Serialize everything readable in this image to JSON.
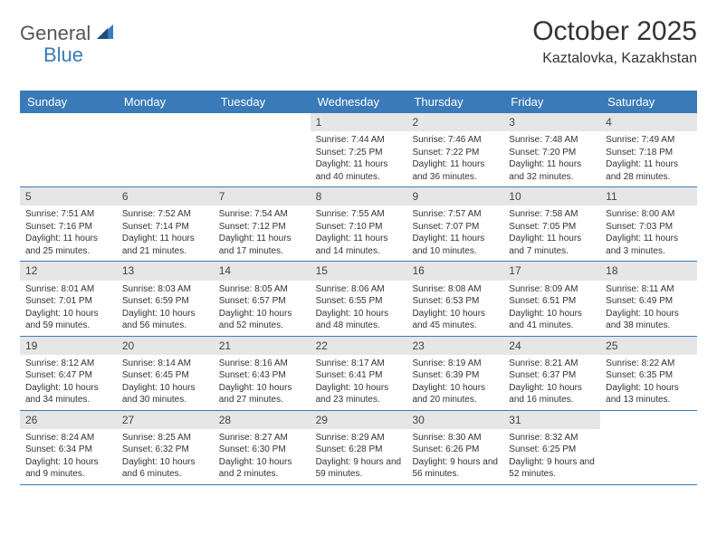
{
  "logo": {
    "general": "General",
    "blue": "Blue"
  },
  "title": "October 2025",
  "location": "Kaztalovka, Kazakhstan",
  "colors": {
    "header_bg": "#3a7ab8",
    "daynum_bg": "#e6e6e6",
    "text": "#333333",
    "row_border": "#3a7ab8"
  },
  "dayNames": [
    "Sunday",
    "Monday",
    "Tuesday",
    "Wednesday",
    "Thursday",
    "Friday",
    "Saturday"
  ],
  "weeks": [
    [
      {
        "n": "",
        "sr": "",
        "ss": "",
        "dl": ""
      },
      {
        "n": "",
        "sr": "",
        "ss": "",
        "dl": ""
      },
      {
        "n": "",
        "sr": "",
        "ss": "",
        "dl": ""
      },
      {
        "n": "1",
        "sr": "Sunrise: 7:44 AM",
        "ss": "Sunset: 7:25 PM",
        "dl": "Daylight: 11 hours and 40 minutes."
      },
      {
        "n": "2",
        "sr": "Sunrise: 7:46 AM",
        "ss": "Sunset: 7:22 PM",
        "dl": "Daylight: 11 hours and 36 minutes."
      },
      {
        "n": "3",
        "sr": "Sunrise: 7:48 AM",
        "ss": "Sunset: 7:20 PM",
        "dl": "Daylight: 11 hours and 32 minutes."
      },
      {
        "n": "4",
        "sr": "Sunrise: 7:49 AM",
        "ss": "Sunset: 7:18 PM",
        "dl": "Daylight: 11 hours and 28 minutes."
      }
    ],
    [
      {
        "n": "5",
        "sr": "Sunrise: 7:51 AM",
        "ss": "Sunset: 7:16 PM",
        "dl": "Daylight: 11 hours and 25 minutes."
      },
      {
        "n": "6",
        "sr": "Sunrise: 7:52 AM",
        "ss": "Sunset: 7:14 PM",
        "dl": "Daylight: 11 hours and 21 minutes."
      },
      {
        "n": "7",
        "sr": "Sunrise: 7:54 AM",
        "ss": "Sunset: 7:12 PM",
        "dl": "Daylight: 11 hours and 17 minutes."
      },
      {
        "n": "8",
        "sr": "Sunrise: 7:55 AM",
        "ss": "Sunset: 7:10 PM",
        "dl": "Daylight: 11 hours and 14 minutes."
      },
      {
        "n": "9",
        "sr": "Sunrise: 7:57 AM",
        "ss": "Sunset: 7:07 PM",
        "dl": "Daylight: 11 hours and 10 minutes."
      },
      {
        "n": "10",
        "sr": "Sunrise: 7:58 AM",
        "ss": "Sunset: 7:05 PM",
        "dl": "Daylight: 11 hours and 7 minutes."
      },
      {
        "n": "11",
        "sr": "Sunrise: 8:00 AM",
        "ss": "Sunset: 7:03 PM",
        "dl": "Daylight: 11 hours and 3 minutes."
      }
    ],
    [
      {
        "n": "12",
        "sr": "Sunrise: 8:01 AM",
        "ss": "Sunset: 7:01 PM",
        "dl": "Daylight: 10 hours and 59 minutes."
      },
      {
        "n": "13",
        "sr": "Sunrise: 8:03 AM",
        "ss": "Sunset: 6:59 PM",
        "dl": "Daylight: 10 hours and 56 minutes."
      },
      {
        "n": "14",
        "sr": "Sunrise: 8:05 AM",
        "ss": "Sunset: 6:57 PM",
        "dl": "Daylight: 10 hours and 52 minutes."
      },
      {
        "n": "15",
        "sr": "Sunrise: 8:06 AM",
        "ss": "Sunset: 6:55 PM",
        "dl": "Daylight: 10 hours and 48 minutes."
      },
      {
        "n": "16",
        "sr": "Sunrise: 8:08 AM",
        "ss": "Sunset: 6:53 PM",
        "dl": "Daylight: 10 hours and 45 minutes."
      },
      {
        "n": "17",
        "sr": "Sunrise: 8:09 AM",
        "ss": "Sunset: 6:51 PM",
        "dl": "Daylight: 10 hours and 41 minutes."
      },
      {
        "n": "18",
        "sr": "Sunrise: 8:11 AM",
        "ss": "Sunset: 6:49 PM",
        "dl": "Daylight: 10 hours and 38 minutes."
      }
    ],
    [
      {
        "n": "19",
        "sr": "Sunrise: 8:12 AM",
        "ss": "Sunset: 6:47 PM",
        "dl": "Daylight: 10 hours and 34 minutes."
      },
      {
        "n": "20",
        "sr": "Sunrise: 8:14 AM",
        "ss": "Sunset: 6:45 PM",
        "dl": "Daylight: 10 hours and 30 minutes."
      },
      {
        "n": "21",
        "sr": "Sunrise: 8:16 AM",
        "ss": "Sunset: 6:43 PM",
        "dl": "Daylight: 10 hours and 27 minutes."
      },
      {
        "n": "22",
        "sr": "Sunrise: 8:17 AM",
        "ss": "Sunset: 6:41 PM",
        "dl": "Daylight: 10 hours and 23 minutes."
      },
      {
        "n": "23",
        "sr": "Sunrise: 8:19 AM",
        "ss": "Sunset: 6:39 PM",
        "dl": "Daylight: 10 hours and 20 minutes."
      },
      {
        "n": "24",
        "sr": "Sunrise: 8:21 AM",
        "ss": "Sunset: 6:37 PM",
        "dl": "Daylight: 10 hours and 16 minutes."
      },
      {
        "n": "25",
        "sr": "Sunrise: 8:22 AM",
        "ss": "Sunset: 6:35 PM",
        "dl": "Daylight: 10 hours and 13 minutes."
      }
    ],
    [
      {
        "n": "26",
        "sr": "Sunrise: 8:24 AM",
        "ss": "Sunset: 6:34 PM",
        "dl": "Daylight: 10 hours and 9 minutes."
      },
      {
        "n": "27",
        "sr": "Sunrise: 8:25 AM",
        "ss": "Sunset: 6:32 PM",
        "dl": "Daylight: 10 hours and 6 minutes."
      },
      {
        "n": "28",
        "sr": "Sunrise: 8:27 AM",
        "ss": "Sunset: 6:30 PM",
        "dl": "Daylight: 10 hours and 2 minutes."
      },
      {
        "n": "29",
        "sr": "Sunrise: 8:29 AM",
        "ss": "Sunset: 6:28 PM",
        "dl": "Daylight: 9 hours and 59 minutes."
      },
      {
        "n": "30",
        "sr": "Sunrise: 8:30 AM",
        "ss": "Sunset: 6:26 PM",
        "dl": "Daylight: 9 hours and 56 minutes."
      },
      {
        "n": "31",
        "sr": "Sunrise: 8:32 AM",
        "ss": "Sunset: 6:25 PM",
        "dl": "Daylight: 9 hours and 52 minutes."
      },
      {
        "n": "",
        "sr": "",
        "ss": "",
        "dl": ""
      }
    ]
  ]
}
